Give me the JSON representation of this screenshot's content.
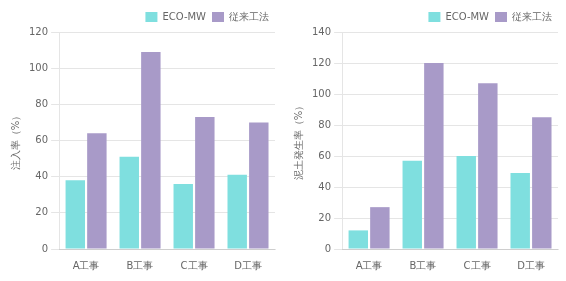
{
  "chart_data": [
    {
      "type": "bar",
      "ylabel": "注入率（%）",
      "categories": [
        "A工事",
        "B工事",
        "C工事",
        "D工事"
      ],
      "series": [
        {
          "name": "ECO-MW",
          "color": "#7FDFDF",
          "values": [
            38,
            51,
            36,
            41
          ]
        },
        {
          "name": "従来工法",
          "color": "#A89AC8",
          "values": [
            64,
            109,
            73,
            70
          ]
        }
      ],
      "ylim": [
        0,
        120
      ],
      "yticks": [
        0,
        20,
        40,
        60,
        80,
        100,
        120
      ],
      "grid": true,
      "legend": "upper right"
    },
    {
      "type": "bar",
      "ylabel": "泥土発生率（%）",
      "categories": [
        "A工事",
        "B工事",
        "C工事",
        "D工事"
      ],
      "series": [
        {
          "name": "ECO-MW",
          "color": "#7FDFDF",
          "values": [
            12,
            57,
            60,
            49
          ]
        },
        {
          "name": "従来工法",
          "color": "#A89AC8",
          "values": [
            27,
            120,
            107,
            85
          ]
        }
      ],
      "ylim": [
        0,
        140
      ],
      "yticks": [
        0,
        20,
        40,
        60,
        80,
        100,
        120,
        140
      ],
      "grid": true,
      "legend": "upper right"
    }
  ]
}
